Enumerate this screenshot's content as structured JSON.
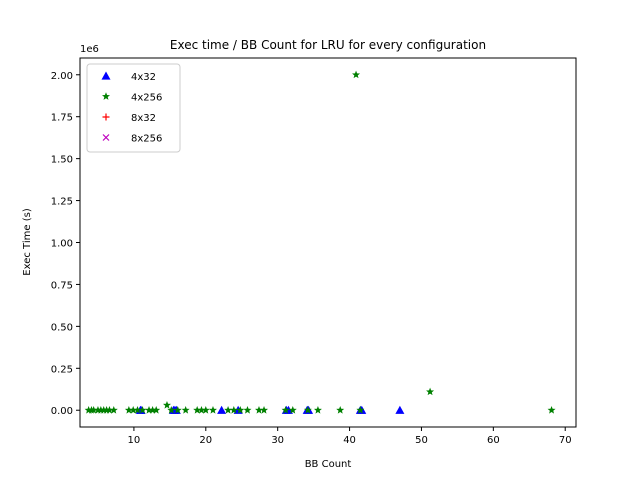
{
  "chart_data": {
    "type": "scatter",
    "title": "Exec time / BB Count for LRU for every configuration",
    "xlabel": "BB Count",
    "ylabel": "Exec Time (s)",
    "y_offset_label": "1e6",
    "xlim": [
      2.5,
      71.5
    ],
    "ylim": [
      -0.1,
      2.1
    ],
    "x_ticks": [
      10,
      20,
      30,
      40,
      50,
      60,
      70
    ],
    "x_tick_labels": [
      "10",
      "20",
      "30",
      "40",
      "50",
      "60",
      "70"
    ],
    "y_ticks": [
      0.0,
      0.25,
      0.5,
      0.75,
      1.0,
      1.25,
      1.5,
      1.75,
      2.0
    ],
    "y_tick_labels": [
      "0.00",
      "0.25",
      "0.50",
      "0.75",
      "1.00",
      "1.25",
      "1.50",
      "1.75",
      "2.00"
    ],
    "legend_position": "top-left",
    "grid": false,
    "series": [
      {
        "name": "4x32",
        "marker": "triangle",
        "color": "#0000ff",
        "x": [
          10.9,
          11.0,
          15.5,
          15.7,
          15.9,
          22.2,
          24.5,
          31.2,
          31.5,
          34.1,
          34.3,
          41.5,
          41.7,
          47.0
        ],
        "y": [
          0.0,
          0.0,
          0.0,
          0.0,
          0.0,
          0.0,
          0.0,
          0.0,
          0.0,
          0.0,
          0.0,
          0.0,
          0.0,
          0.0
        ]
      },
      {
        "name": "4x256",
        "marker": "star",
        "color": "#008000",
        "x": [
          3.7,
          4.1,
          4.4,
          5.0,
          5.4,
          5.8,
          6.2,
          6.6,
          7.2,
          9.3,
          9.9,
          10.5,
          11.2,
          12.1,
          12.6,
          13.1,
          14.6,
          15.2,
          16.1,
          17.2,
          18.8,
          19.4,
          20.0,
          21.0,
          23.1,
          23.9,
          24.8,
          25.8,
          27.4,
          28.1,
          31.1,
          32.1,
          34.2,
          35.6,
          38.7,
          40.9,
          41.5,
          51.2,
          68.1
        ],
        "y": [
          0.0,
          0.0,
          0.0,
          0.0,
          0.0,
          0.0,
          0.0,
          0.0,
          0.0,
          0.0,
          0.0,
          0.0,
          0.0,
          0.0,
          0.0,
          0.0,
          0.03,
          0.0,
          0.0,
          0.0,
          0.0,
          0.0,
          0.0,
          0.0,
          0.0,
          0.0,
          0.0,
          0.0,
          0.0,
          0.0,
          0.0,
          0.0,
          0.0,
          0.0,
          0.0,
          2.0,
          0.0,
          0.11,
          0.0
        ]
      },
      {
        "name": "8x32",
        "marker": "plus",
        "color": "#ff0000",
        "x": [],
        "y": []
      },
      {
        "name": "8x256",
        "marker": "x",
        "color": "#bf00bf",
        "x": [],
        "y": []
      }
    ]
  }
}
